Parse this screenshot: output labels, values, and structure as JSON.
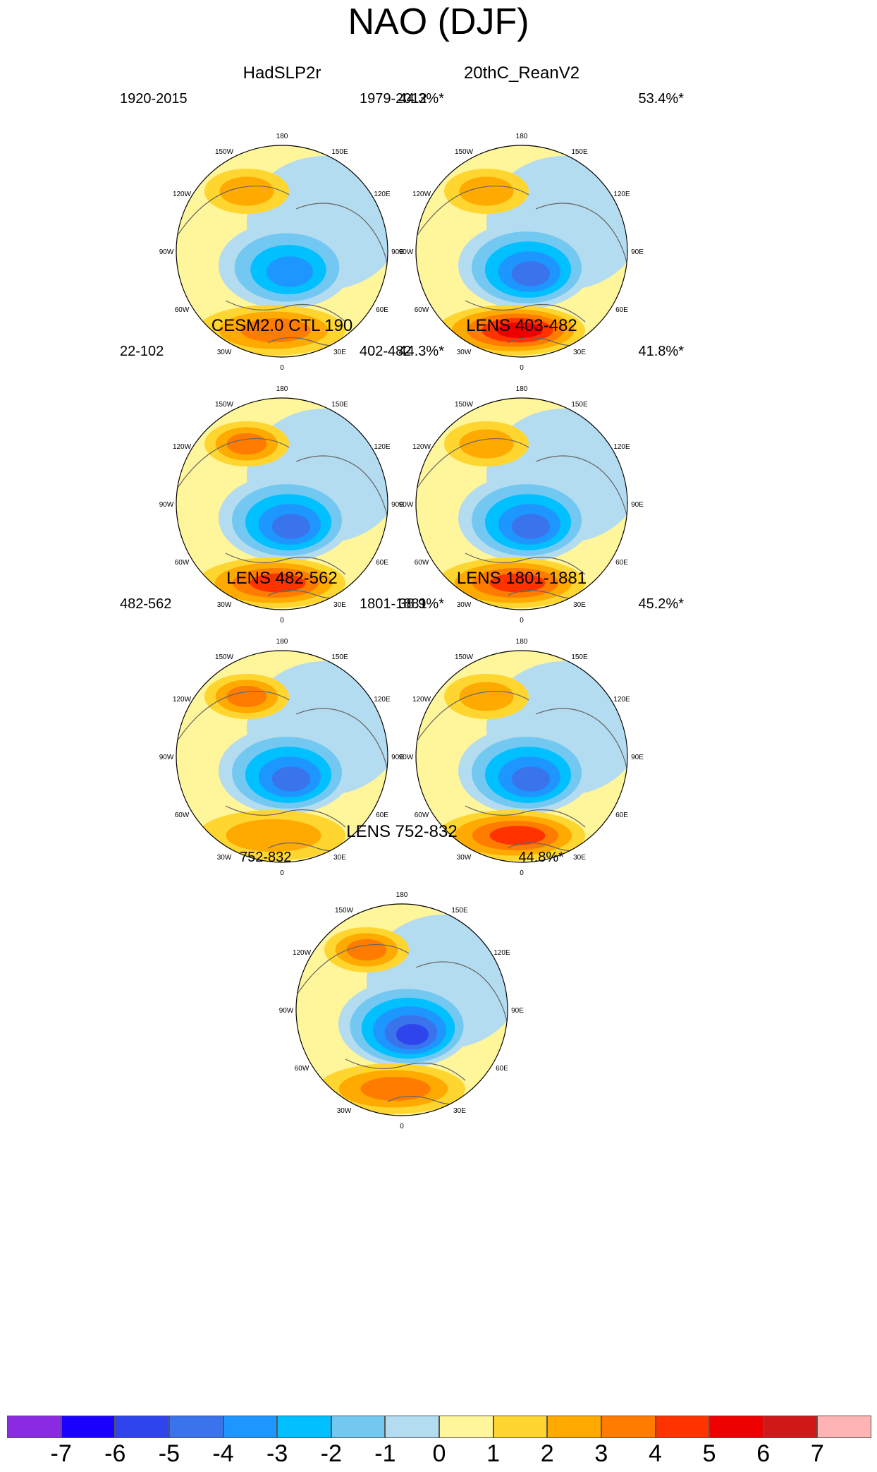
{
  "figure": {
    "title": "NAO (DJF)"
  },
  "map_labels": {
    "top": "180",
    "bottom": "0",
    "left": "90W",
    "right": "90E",
    "upper_left_1": "150W",
    "upper_right_1": "150E",
    "upper_left_2": "120W",
    "upper_right_2": "120E",
    "lower_left_1": "60W",
    "lower_right_1": "60E",
    "lower_left_2": "30W",
    "lower_right_2": "30E"
  },
  "panels": [
    {
      "title": "HadSLP2r",
      "years": "1920-2015",
      "variance": "44.3%*",
      "center_min": -4,
      "atl_max": 3,
      "pac_max": 2
    },
    {
      "title": "20thC_ReanV2",
      "years": "1979-2012",
      "variance": "53.4%*",
      "center_min": -5,
      "atl_max": 5,
      "pac_max": 2
    },
    {
      "title": "CESM2.0 CTL 190",
      "years": "22-102",
      "variance": "44.3%*",
      "center_min": -5,
      "atl_max": 4,
      "pac_max": 3
    },
    {
      "title": "LENS 403-482",
      "years": "402-482",
      "variance": "41.8%*",
      "center_min": -5,
      "atl_max": 4,
      "pac_max": 2
    },
    {
      "title": "LENS 482-562",
      "years": "482-562",
      "variance": "38.9%*",
      "center_min": -5,
      "atl_max": 2,
      "pac_max": 3
    },
    {
      "title": "LENS 1801-1881",
      "years": "1801-1881",
      "variance": "45.2%*",
      "center_min": -5,
      "atl_max": 4,
      "pac_max": 2
    },
    {
      "title": "LENS 752-832",
      "years": "752-832",
      "variance": "44.8%*",
      "center_min": -6,
      "atl_max": 3,
      "pac_max": 3
    }
  ],
  "colorbar": {
    "labels": [
      "-7",
      "-6",
      "-5",
      "-4",
      "-3",
      "-2",
      "-1",
      "0",
      "1",
      "2",
      "3",
      "4",
      "5",
      "6",
      "7"
    ],
    "colors": [
      "#8a2be2",
      "#1a00ff",
      "#2e45ee",
      "#3a74ec",
      "#1e96ff",
      "#00c0ff",
      "#73c8f2",
      "#b4dcf0",
      "#fff59a",
      "#ffd630",
      "#ffaa00",
      "#ff7c00",
      "#ff3200",
      "#ee0000",
      "#d01818",
      "#ffb4b4"
    ]
  }
}
